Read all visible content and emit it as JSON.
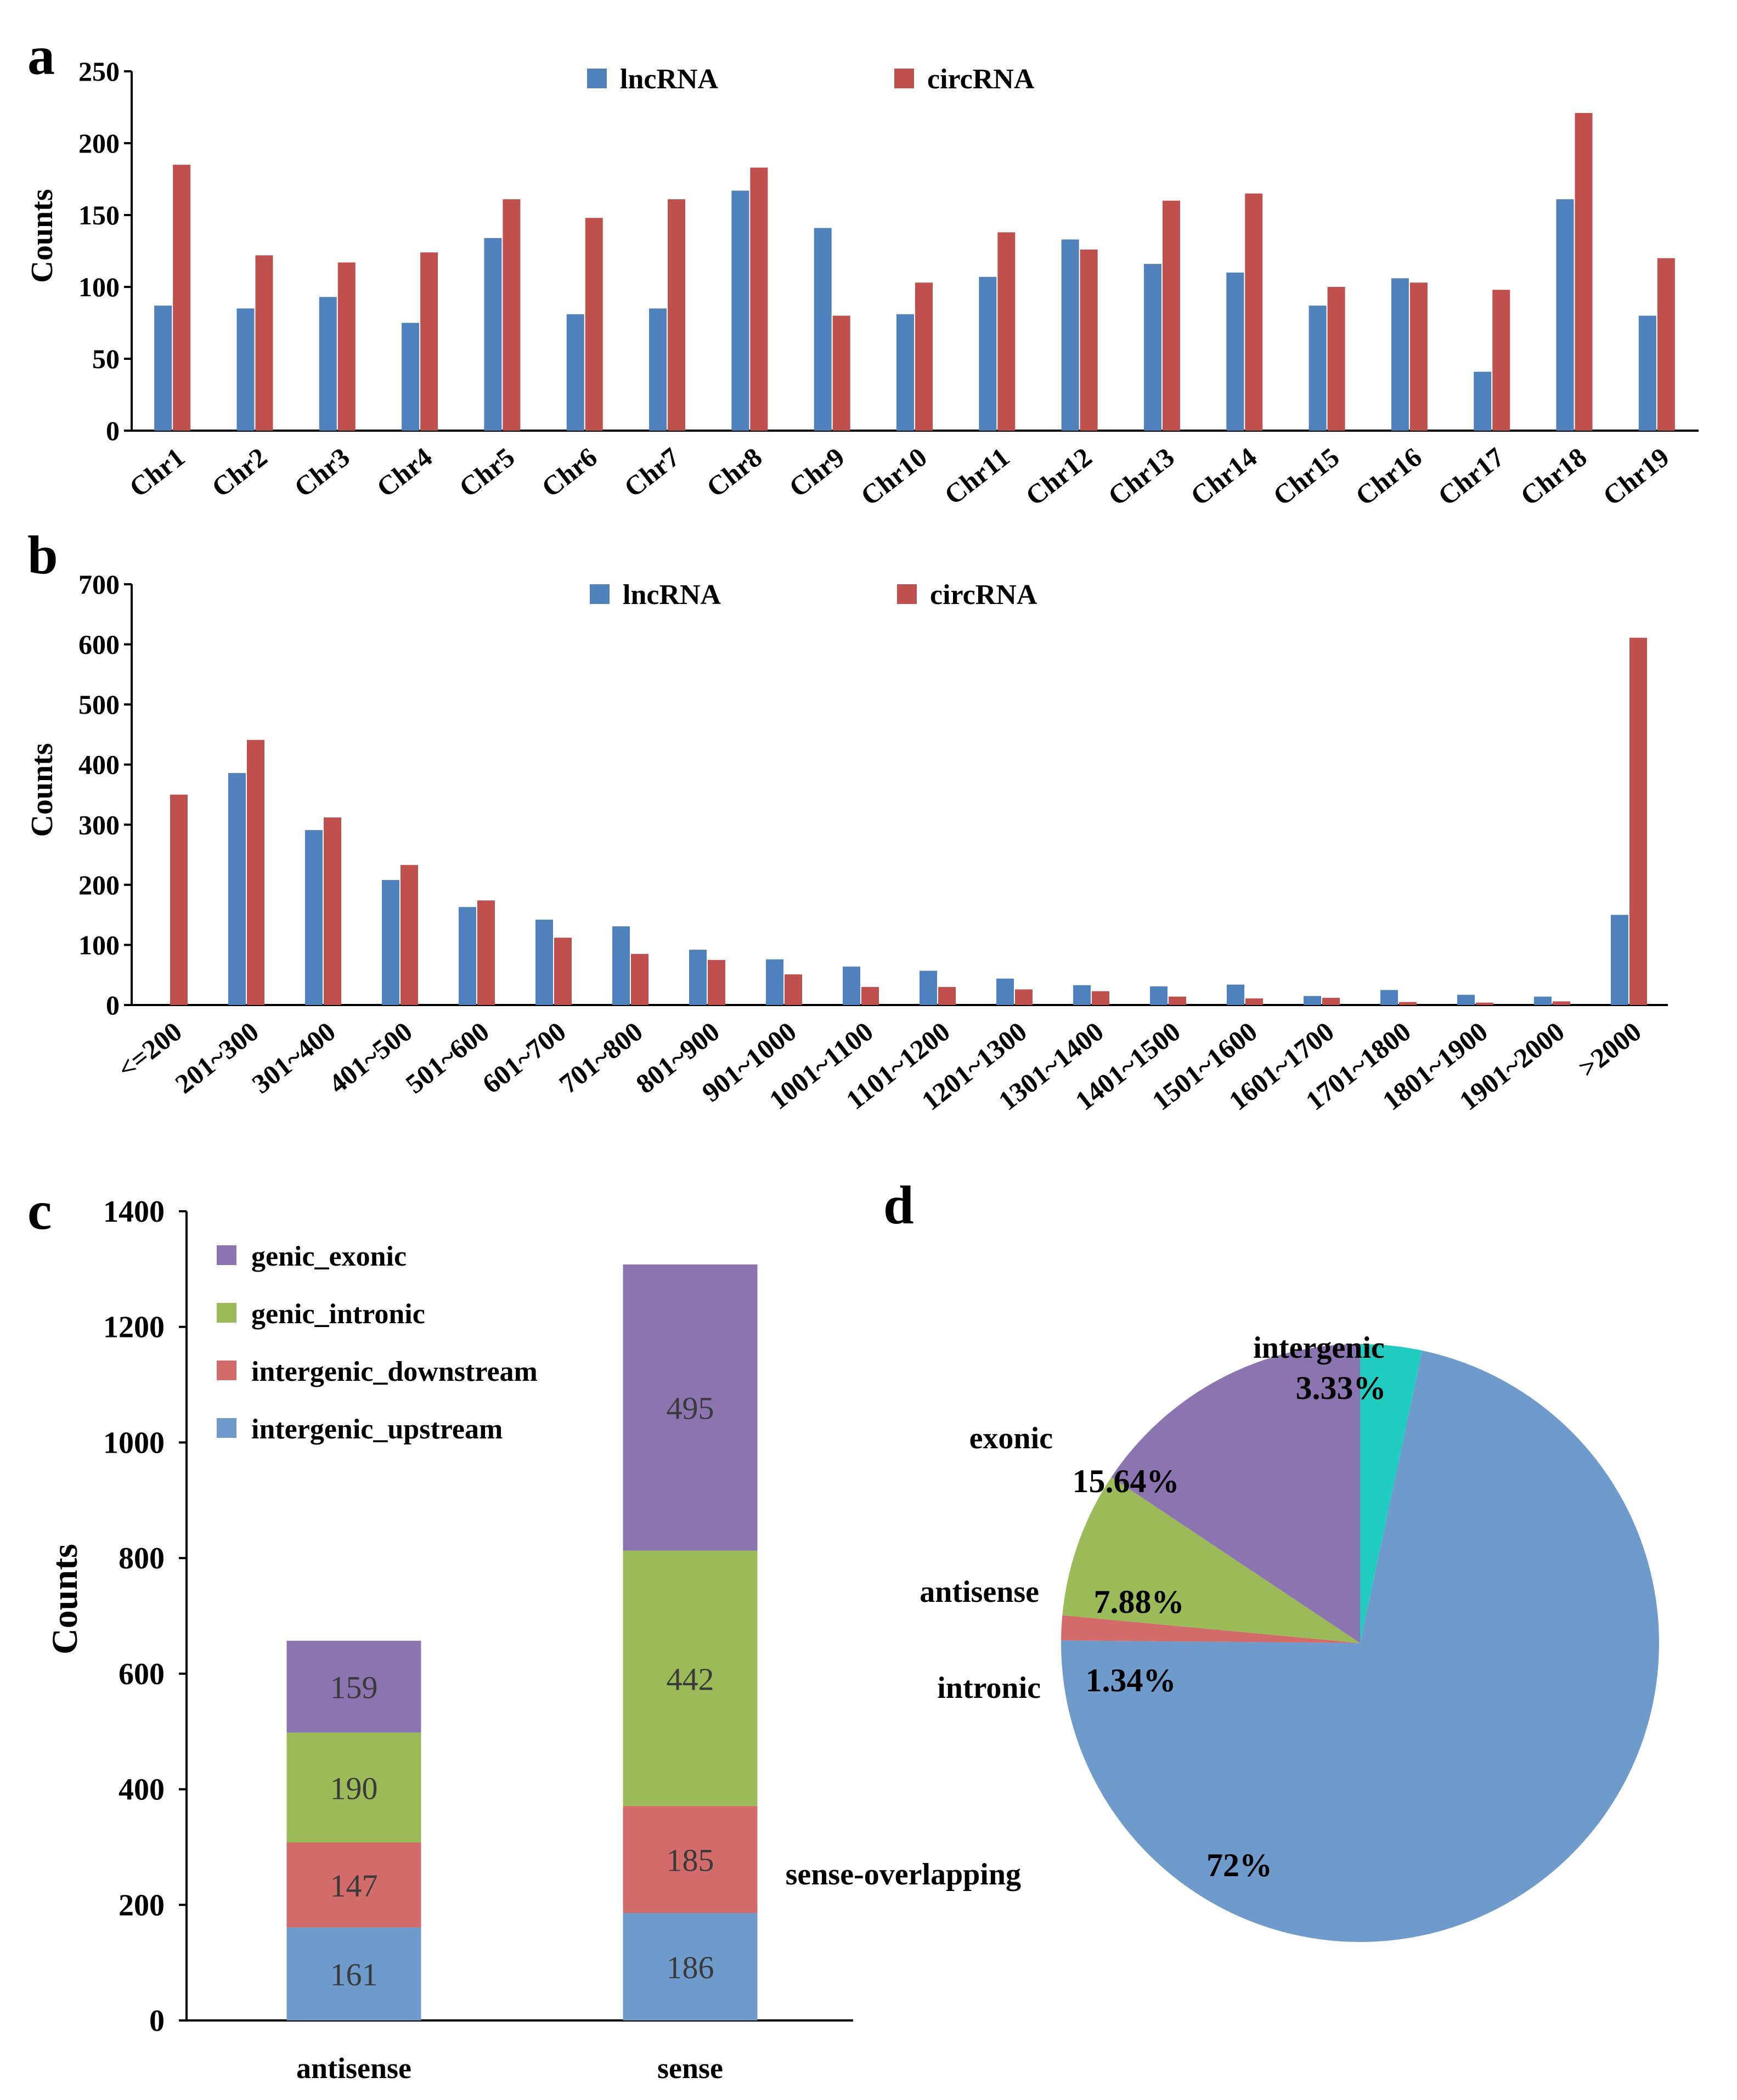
{
  "colors": {
    "lncRNA": "#4F81BD",
    "circRNA": "#C0504D",
    "genic_exonic": "#8C74B0",
    "genic_intronic": "#9BBB59",
    "intergenic_downstream": "#D26B69",
    "intergenic_upstream": "#6E9BCB",
    "pie_sense": "#6E9BCB",
    "pie_intronic": "#D26B69",
    "pie_antisense": "#9BBB59",
    "pie_exonic": "#8C74B0",
    "pie_intergenic": "#1FCCBF"
  },
  "panels": {
    "a": "a",
    "b": "b",
    "c": "c",
    "d": "d"
  },
  "chart_data": [
    {
      "id": "a",
      "type": "bar",
      "ylabel": "Counts",
      "ylim": [
        0,
        250
      ],
      "yticks": [
        0,
        50,
        100,
        150,
        200,
        250
      ],
      "categories": [
        "Chr1",
        "Chr2",
        "Chr3",
        "Chr4",
        "Chr5",
        "Chr6",
        "Chr7",
        "Chr8",
        "Chr9",
        "Chr10",
        "Chr11",
        "Chr12",
        "Chr13",
        "Chr14",
        "Chr15",
        "Chr16",
        "Chr17",
        "Chr18",
        "Chr19"
      ],
      "series": [
        {
          "name": "lncRNA",
          "values": [
            87,
            85,
            93,
            75,
            134,
            81,
            85,
            167,
            141,
            81,
            107,
            133,
            116,
            110,
            87,
            106,
            41,
            161,
            80
          ]
        },
        {
          "name": "circRNA",
          "values": [
            185,
            122,
            117,
            124,
            161,
            148,
            161,
            183,
            80,
            103,
            138,
            126,
            160,
            165,
            100,
            103,
            98,
            221,
            120
          ]
        }
      ],
      "legend": "top"
    },
    {
      "id": "b",
      "type": "bar",
      "ylabel": "Counts",
      "ylim": [
        0,
        700
      ],
      "yticks": [
        0,
        100,
        200,
        300,
        400,
        500,
        600,
        700
      ],
      "categories": [
        "<=200",
        "201~300",
        "301~400",
        "401~500",
        "501~600",
        "601~700",
        "701~800",
        "801~900",
        "901~1000",
        "1001~1100",
        "1101~1200",
        "1201~1300",
        "1301~1400",
        "1401~1500",
        "1501~1600",
        "1601~1700",
        "1701~1800",
        "1801~1900",
        "1901~2000",
        ">2000"
      ],
      "series": [
        {
          "name": "lncRNA",
          "values": [
            0,
            386,
            291,
            208,
            163,
            142,
            131,
            92,
            76,
            64,
            57,
            44,
            33,
            31,
            34,
            15,
            25,
            17,
            14,
            150
          ]
        },
        {
          "name": "circRNA",
          "values": [
            350,
            441,
            312,
            233,
            174,
            112,
            85,
            75,
            51,
            30,
            30,
            26,
            23,
            14,
            11,
            12,
            5,
            4,
            6,
            611
          ]
        }
      ],
      "legend": "top"
    },
    {
      "id": "c",
      "type": "stacked-bar",
      "ylabel": "Counts",
      "ylim": [
        0,
        1400
      ],
      "yticks": [
        0,
        200,
        400,
        600,
        800,
        1000,
        1200,
        1400
      ],
      "categories": [
        "antisense",
        "sense"
      ],
      "series": [
        {
          "name": "intergenic_upstream",
          "values": [
            161,
            186
          ]
        },
        {
          "name": "intergenic_downstream",
          "values": [
            147,
            185
          ]
        },
        {
          "name": "genic_intronic",
          "values": [
            190,
            442
          ]
        },
        {
          "name": "genic_exonic",
          "values": [
            159,
            495
          ]
        }
      ],
      "legend_order": [
        "genic_exonic",
        "genic_intronic",
        "intergenic_downstream",
        "intergenic_upstream"
      ],
      "legend": "top-left"
    },
    {
      "id": "d",
      "type": "pie",
      "slices": [
        {
          "name": "intergenic",
          "label": "intergenic",
          "value": 3.33,
          "pct": "3.33%"
        },
        {
          "name": "sense",
          "label": "sense-overlapping",
          "value": 71.81,
          "pct": "72%"
        },
        {
          "name": "intronic",
          "label": "intronic",
          "value": 1.34,
          "pct": "1.34%"
        },
        {
          "name": "antisense",
          "label": "antisense",
          "value": 7.88,
          "pct": "7.88%"
        },
        {
          "name": "exonic",
          "label": "exonic",
          "value": 15.64,
          "pct": "15.64%"
        }
      ]
    }
  ]
}
